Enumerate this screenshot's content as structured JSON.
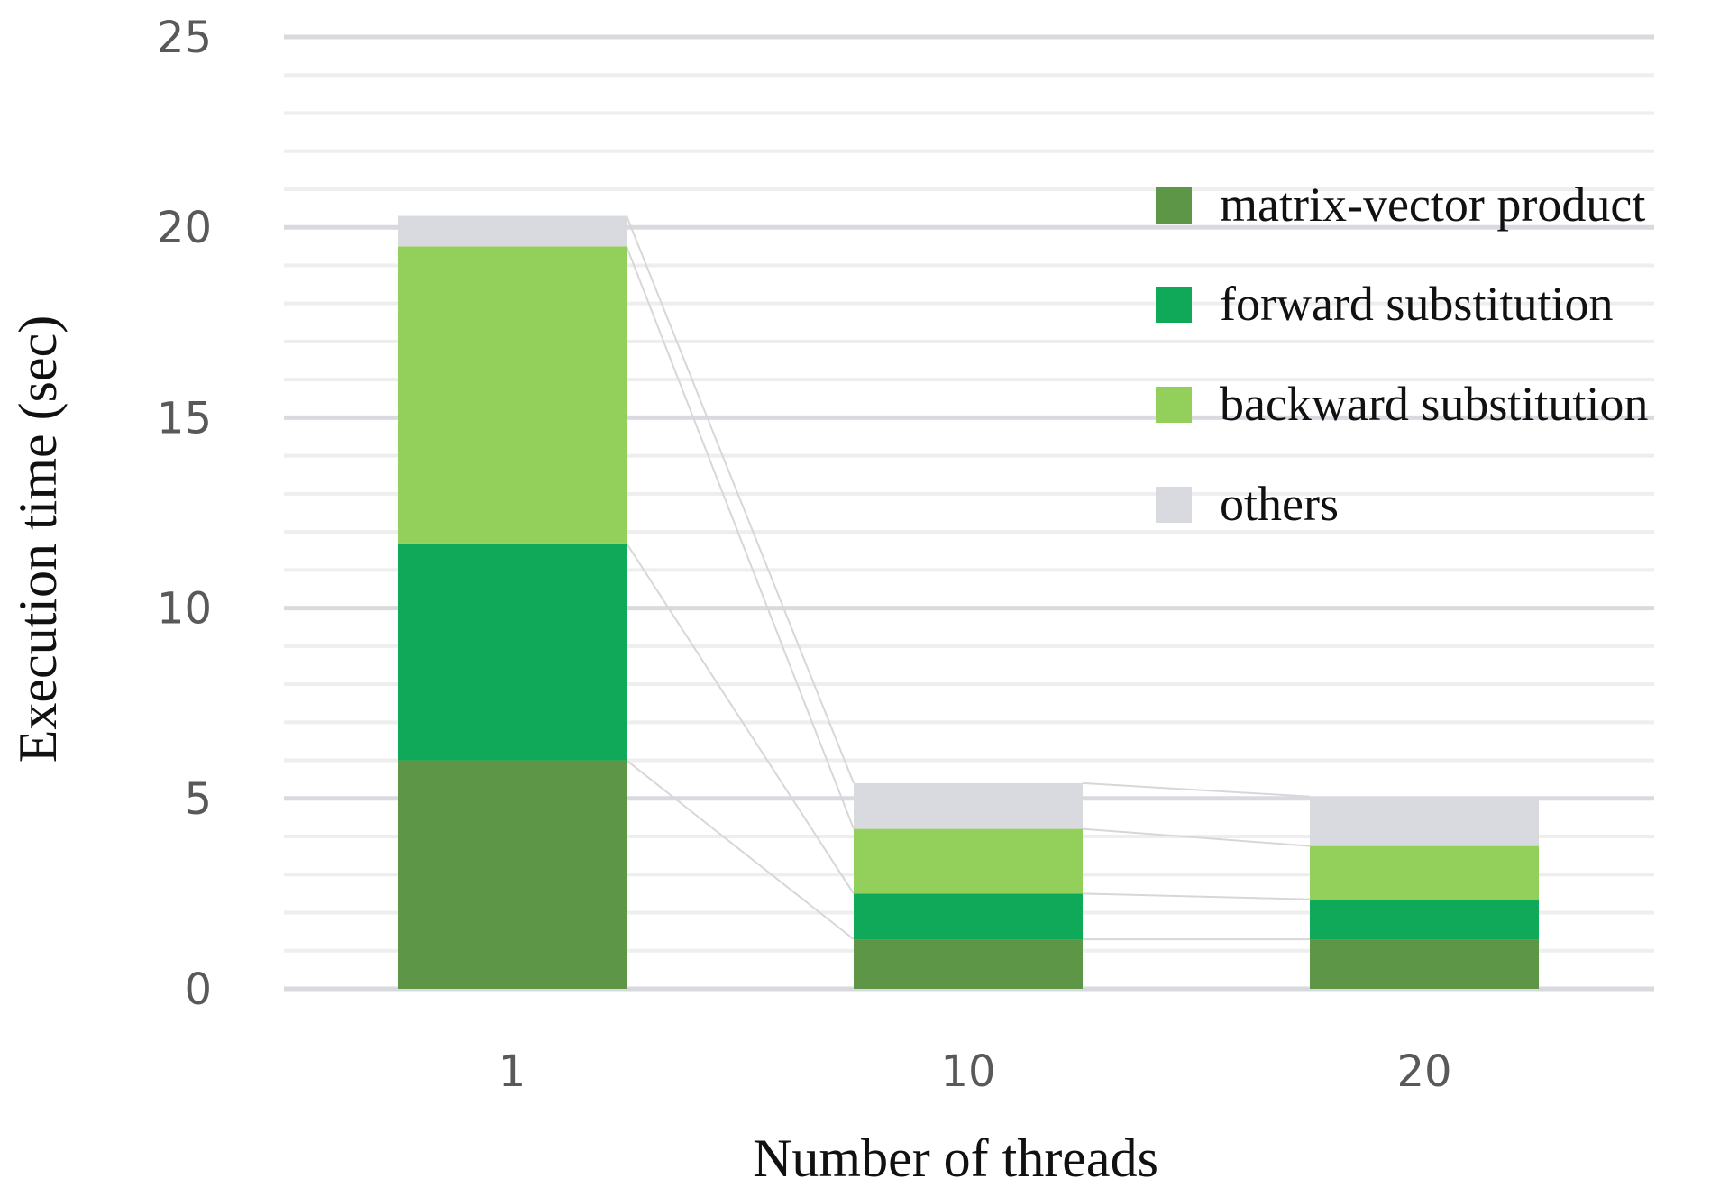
{
  "chart_data": {
    "type": "bar",
    "stacked": true,
    "categories": [
      "1",
      "10",
      "20"
    ],
    "series": [
      {
        "name": "matrix-vector product",
        "color": "#5e9648",
        "values": [
          6.0,
          1.3,
          1.3
        ]
      },
      {
        "name": "forward substitution",
        "color": "#10a95a",
        "values": [
          5.7,
          1.2,
          1.05
        ]
      },
      {
        "name": "backward substitution",
        "color": "#93d05b",
        "values": [
          7.8,
          1.7,
          1.4
        ]
      },
      {
        "name": "others",
        "color": "#d9dadf",
        "values": [
          0.8,
          1.2,
          1.3
        ]
      }
    ],
    "xlabel": "Number of threads",
    "ylabel": "Execution time (sec)",
    "ylim": [
      0,
      25
    ],
    "yticks": [
      "0",
      "5",
      "10",
      "15",
      "20",
      "25"
    ],
    "grid": true,
    "legend": "right"
  }
}
